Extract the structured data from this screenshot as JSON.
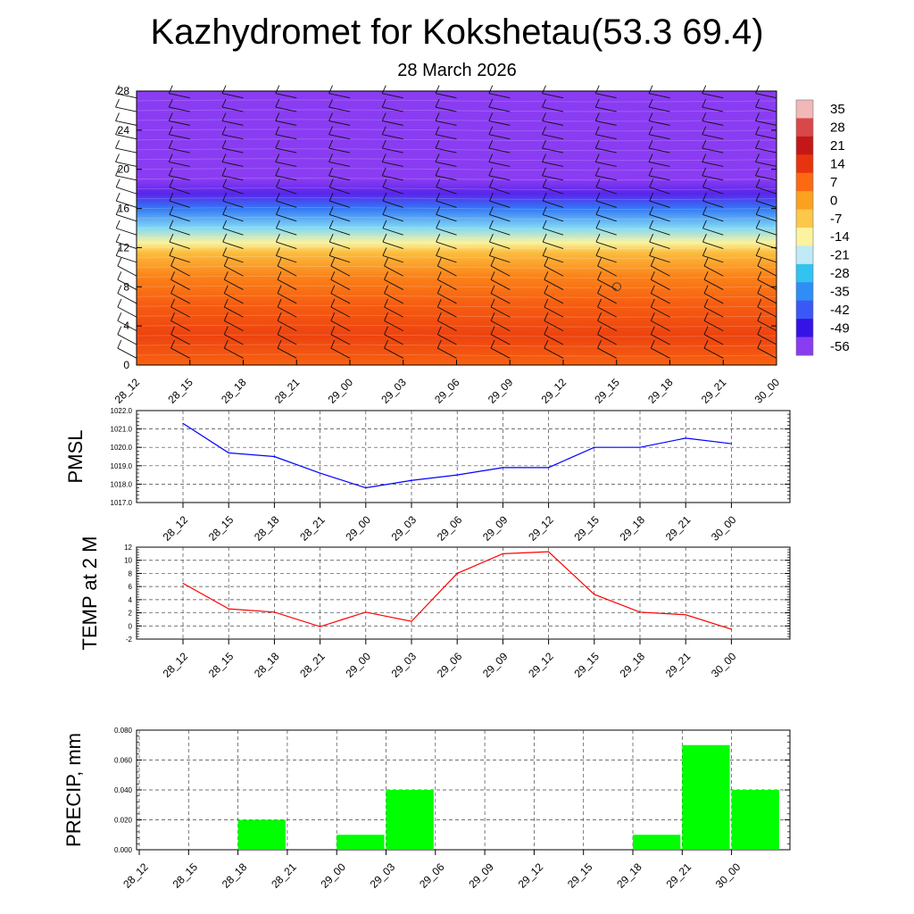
{
  "title": "Kazhydromet for Kokshetau(53.3 69.4)",
  "subtitle": "28 March 2026",
  "chart_data": [
    {
      "type": "heatmap",
      "name": "vertical temperature cross-section with wind barbs",
      "x_categories": [
        "28_12",
        "28_15",
        "28_18",
        "28_21",
        "29_00",
        "29_03",
        "29_06",
        "29_09",
        "29_12",
        "29_15",
        "29_18",
        "29_21",
        "30_00"
      ],
      "y_range": [
        0,
        28
      ],
      "y_ticks": [
        0,
        4,
        8,
        12,
        16,
        20,
        24,
        28
      ],
      "colorbar": {
        "labels": [
          "35",
          "28",
          "21",
          "14",
          "7",
          "0",
          "-7",
          "-14",
          "-21",
          "-28",
          "-35",
          "-42",
          "-49",
          "-56"
        ],
        "colors": [
          "#f2b8b8",
          "#d8484a",
          "#c41818",
          "#e8340e",
          "#fb6a12",
          "#fca020",
          "#fbc84a",
          "#fbf39e",
          "#c0eaf7",
          "#32c3f0",
          "#2e8ef5",
          "#3a58f5",
          "#3513e6",
          "#8a3cf2"
        ]
      },
      "temperature_profile": [
        {
          "height": 0,
          "temp": 8
        },
        {
          "height": 3,
          "temp": 12
        },
        {
          "height": 6,
          "temp": 9
        },
        {
          "height": 9,
          "temp": 4
        },
        {
          "height": 11.5,
          "temp": -5
        },
        {
          "height": 12.5,
          "temp": -14
        },
        {
          "height": 14,
          "temp": -24
        },
        {
          "height": 16,
          "temp": -38
        },
        {
          "height": 17.5,
          "temp": -52
        },
        {
          "height": 19,
          "temp": -60
        },
        {
          "height": 24,
          "temp": -58
        },
        {
          "height": 28,
          "temp": -62
        }
      ]
    },
    {
      "type": "line",
      "ylabel": "PMSL",
      "categories": [
        "28_12",
        "28_15",
        "28_18",
        "28_21",
        "29_00",
        "29_03",
        "29_06",
        "29_09",
        "29_12",
        "29_15",
        "29_18",
        "29_21",
        "30_00"
      ],
      "y_tick_labels": [
        "1017.0",
        "1018.0",
        "1019.0",
        "1020.0",
        "1021.0",
        "1022.0"
      ],
      "ylim": [
        1017.0,
        1022.0
      ],
      "color": "#0000ff",
      "values": [
        1021.3,
        1019.7,
        1019.5,
        1018.6,
        1017.8,
        1018.2,
        1018.5,
        1018.9,
        1018.9,
        1020.0,
        1020.0,
        1020.5,
        1020.2
      ]
    },
    {
      "type": "line",
      "ylabel": "TEMP at 2 M",
      "categories": [
        "28_12",
        "28_15",
        "28_18",
        "28_21",
        "29_00",
        "29_03",
        "29_06",
        "29_09",
        "29_12",
        "29_15",
        "29_18",
        "29_21",
        "30_00"
      ],
      "y_tick_labels": [
        "-2",
        "0",
        "2",
        "4",
        "6",
        "8",
        "10",
        "12"
      ],
      "ylim": [
        -2,
        12
      ],
      "color": "#ff0000",
      "values": [
        6.5,
        2.6,
        2.1,
        -0.1,
        2.1,
        0.7,
        8.0,
        11.0,
        11.3,
        4.8,
        2.1,
        1.7,
        -0.5
      ]
    },
    {
      "type": "bar",
      "ylabel": "PRECIP, mm",
      "categories": [
        "28_12",
        "28_15",
        "28_18",
        "28_21",
        "29_00",
        "29_03",
        "29_06",
        "29_09",
        "29_12",
        "29_15",
        "29_18",
        "29_21",
        "30_00"
      ],
      "y_tick_labels": [
        "0.000",
        "0.020",
        "0.040",
        "0.060",
        "0.080"
      ],
      "ylim": [
        0,
        0.08
      ],
      "color": "#00ff00",
      "values": [
        0,
        0,
        0.02,
        0,
        0.01,
        0.04,
        0,
        0,
        0,
        0,
        0.01,
        0.07,
        0.04
      ]
    }
  ]
}
